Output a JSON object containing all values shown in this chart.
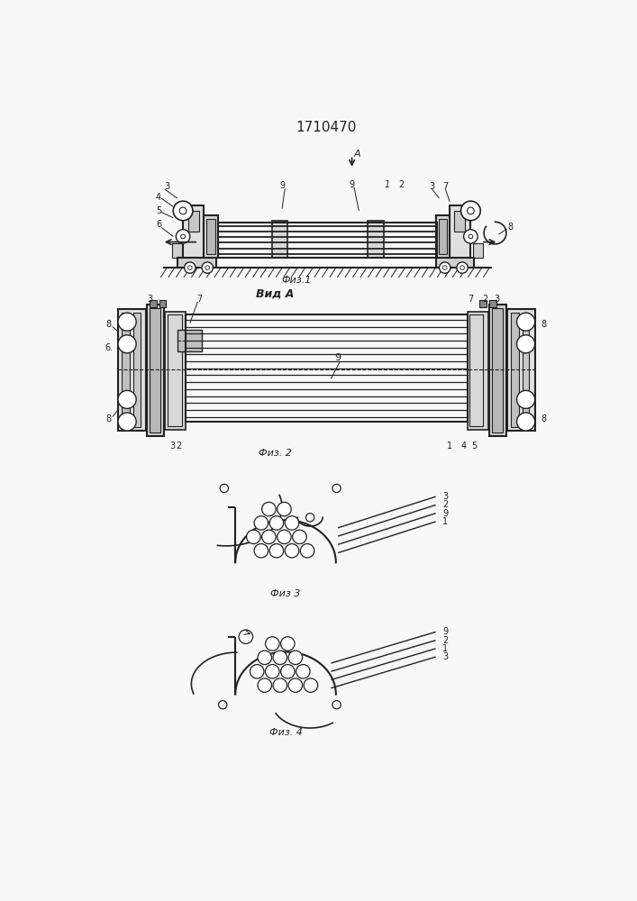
{
  "title": "1710470",
  "bg_color": "#f8f8f6",
  "line_color": "#222222",
  "fig1_caption": "Физ.1",
  "fig2_caption": "Вид A",
  "fig2_sub": "Физ. 2",
  "fig3_caption": "Физ 3",
  "fig4_caption": "Физ. 4"
}
